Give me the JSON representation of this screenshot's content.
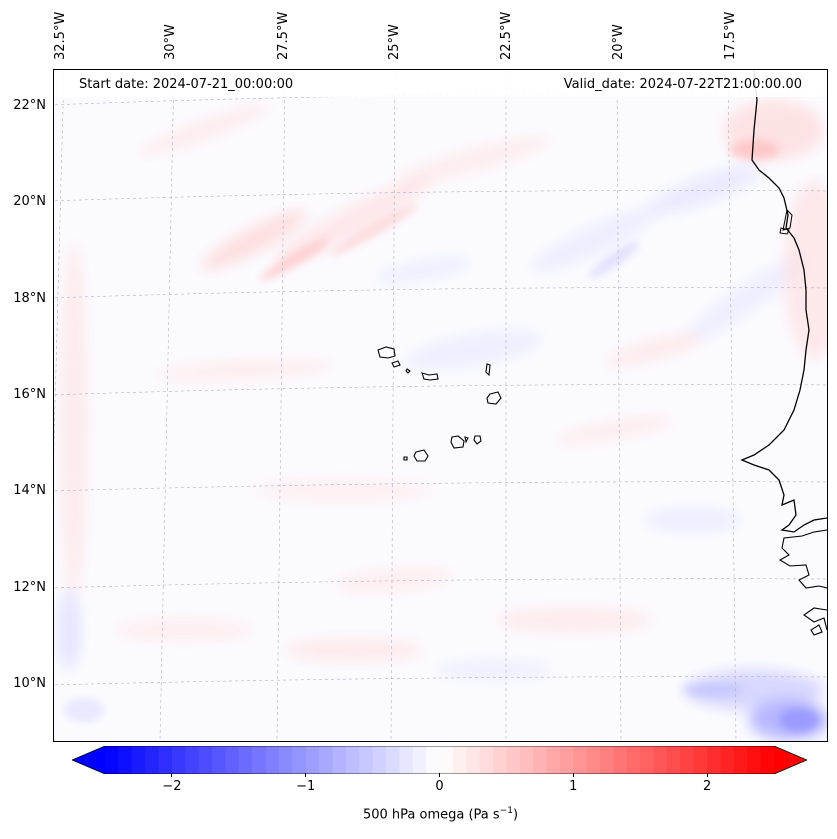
{
  "header": {
    "start_date": "Start date: 2024-07-21_00:00:00",
    "valid_date": "Valid_date: 2024-07-22T21:00:00.00"
  },
  "longitude_labels": [
    "32.5°W",
    "30°W",
    "27.5°W",
    "25°W",
    "22.5°W",
    "20°W",
    "17.5°W"
  ],
  "latitude_labels": [
    "22°N",
    "20°N",
    "18°N",
    "16°N",
    "14°N",
    "12°N",
    "10°N"
  ],
  "colorbar": {
    "ticks": [
      "−2",
      "−1",
      "0",
      "1",
      "2"
    ],
    "tick_values": [
      -2,
      -1,
      0,
      1,
      2
    ],
    "range": [
      -2.5,
      2.5
    ],
    "label_prefix": "500 hPa omega (Pa s",
    "label_exp": "−1",
    "label_suffix": ")",
    "cmap": "bwr",
    "colors": {
      "negative": "#0000ff",
      "zero": "#ffffff",
      "positive": "#ff0000"
    }
  },
  "map": {
    "coastline_color": "#000000",
    "gridline_color": "#b0b0c8"
  }
}
